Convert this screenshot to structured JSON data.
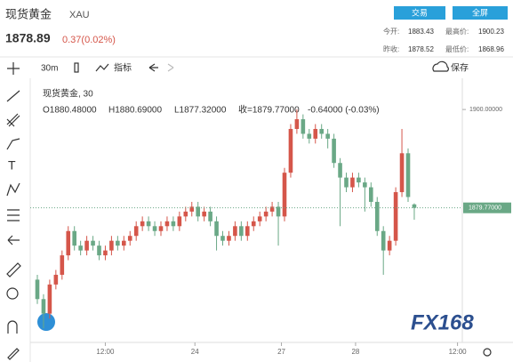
{
  "header": {
    "name": "现货黄金",
    "code": "XAU",
    "price": "1878.89",
    "change": "0.37(0.02%)",
    "buttons": [
      "交易",
      "全屏"
    ],
    "stats": [
      [
        "今开:",
        "1883.43"
      ],
      [
        "最高价:",
        "1900.23"
      ],
      [
        "昨收:",
        "1878.52"
      ],
      [
        "最低价:",
        "1868.96"
      ]
    ]
  },
  "toolbar": {
    "interval": "30m",
    "indicators": "指标",
    "save": "保存"
  },
  "legend": {
    "symbol": "现货黄金, 30",
    "open": "O1880.48000",
    "high": "H1880.69000",
    "low": "L1877.32000",
    "close": "收=1879.77000",
    "change": "-0.64000 (-0.03%)"
  },
  "watermark": "FX168",
  "chart_data": {
    "type": "candlestick",
    "up_color": "#d5564a",
    "down_color": "#6aa886",
    "open": [
      1865,
      1861,
      1858,
      1864,
      1866,
      1870,
      1875,
      1872,
      1871,
      1873,
      1872,
      1870,
      1871,
      1873,
      1872,
      1873,
      1874,
      1876,
      1877,
      1876,
      1875,
      1876,
      1877,
      1876,
      1878,
      1879,
      1880,
      1878,
      1879,
      1877,
      1874,
      1873,
      1874,
      1876,
      1874,
      1876,
      1877,
      1878,
      1879,
      1880,
      1878,
      1887,
      1896,
      1898,
      1895,
      1894,
      1896,
      1895,
      1894,
      1889,
      1886,
      1884,
      1886,
      1885,
      1884,
      1881,
      1875,
      1871,
      1873,
      1883,
      1891,
      1880.48
    ],
    "high": [
      1866,
      1862,
      1865,
      1867,
      1871,
      1876,
      1876,
      1873,
      1874,
      1874,
      1873,
      1872,
      1874,
      1874,
      1874,
      1875,
      1877,
      1878,
      1878,
      1877,
      1877,
      1878,
      1878,
      1879,
      1880,
      1881,
      1881,
      1880,
      1880,
      1878,
      1875,
      1875,
      1877,
      1877,
      1877,
      1878,
      1879,
      1880,
      1881,
      1881,
      1888,
      1897,
      1900,
      1899,
      1896,
      1897,
      1897,
      1896,
      1895,
      1890,
      1887,
      1887,
      1887,
      1886,
      1885,
      1882,
      1876,
      1874,
      1884,
      1896,
      1892,
      1880.69
    ],
    "low": [
      1860,
      1855,
      1857,
      1863,
      1865,
      1869,
      1871,
      1870,
      1870,
      1871,
      1869,
      1869,
      1870,
      1871,
      1871,
      1872,
      1873,
      1875,
      1875,
      1874,
      1874,
      1875,
      1875,
      1875,
      1877,
      1878,
      1877,
      1877,
      1876,
      1871,
      1872,
      1872,
      1873,
      1873,
      1873,
      1875,
      1876,
      1877,
      1878,
      1872,
      1877,
      1886,
      1895,
      1894,
      1893,
      1893,
      1894,
      1892,
      1888,
      1876,
      1883,
      1883,
      1884,
      1879,
      1880,
      1874,
      1866,
      1870,
      1872,
      1882,
      1881,
      1877.32
    ],
    "close": [
      1861,
      1858,
      1864,
      1866,
      1870,
      1875,
      1872,
      1871,
      1873,
      1872,
      1870,
      1871,
      1873,
      1872,
      1873,
      1874,
      1876,
      1877,
      1876,
      1875,
      1876,
      1877,
      1876,
      1878,
      1879,
      1880,
      1878,
      1879,
      1877,
      1874,
      1873,
      1874,
      1876,
      1874,
      1876,
      1877,
      1878,
      1879,
      1880,
      1878,
      1887,
      1896,
      1898,
      1895,
      1894,
      1896,
      1895,
      1894,
      1889,
      1886,
      1884,
      1886,
      1885,
      1884,
      1881,
      1875,
      1871,
      1873,
      1883,
      1891,
      1882,
      1879.77
    ],
    "ylim": [
      1853,
      1902.4
    ],
    "yticks": [
      {
        "value": 1900,
        "label": "1900.00000"
      }
    ],
    "last_price": {
      "value": 1879.77,
      "label": "1879.77000"
    },
    "xticks": [
      {
        "value": 11,
        "label": "12:00"
      },
      {
        "value": 25.5,
        "label": "24"
      },
      {
        "value": 39.5,
        "label": "27"
      },
      {
        "value": 51.5,
        "label": "28"
      },
      {
        "value": 68,
        "label": "12:00"
      }
    ]
  }
}
